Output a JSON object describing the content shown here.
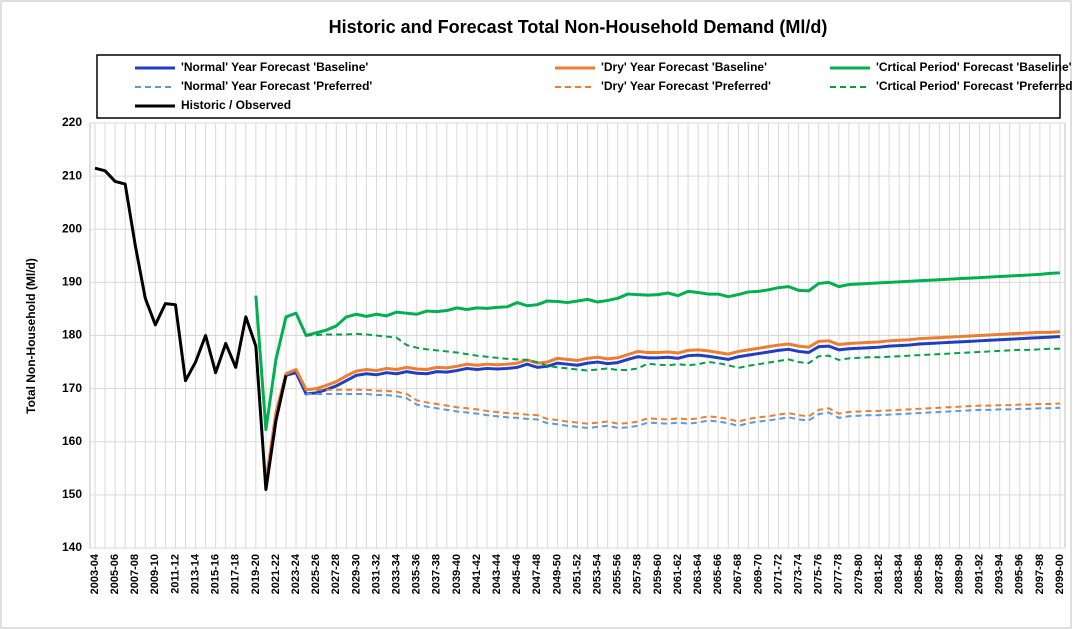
{
  "chart_data": {
    "type": "line",
    "title": "Historic and Forecast Total Non-Household Demand (Ml/d)",
    "y_label": "Total Non-Household (Ml/d)",
    "categories": [
      "2003-04",
      null,
      "2005-06",
      null,
      "2007-08",
      null,
      "2009-10",
      null,
      "2011-12",
      null,
      "2013-14",
      null,
      "2015-16",
      null,
      "2017-18",
      null,
      "2019-20",
      null,
      "2021-22",
      null,
      "2023-24",
      null,
      "2025-26",
      null,
      "2027-28",
      null,
      "2029-30",
      null,
      "2031-32",
      null,
      "2033-34",
      null,
      "2035-36",
      null,
      "2037-38",
      null,
      "2039-40",
      null,
      "2041-42",
      null,
      "2043-44",
      null,
      "2045-46",
      null,
      "2047-48",
      null,
      "2049-50",
      null,
      "2051-52",
      null,
      "2053-54",
      null,
      "2055-56",
      null,
      "2057-58",
      null,
      "2059-60",
      null,
      "2061-62",
      null,
      "2063-64",
      null,
      "2065-66",
      null,
      "2067-68",
      null,
      "2069-70",
      null,
      "2071-72",
      null,
      "2073-74",
      null,
      "2075-76",
      null,
      "2077-78",
      null,
      "2079-80",
      null,
      "2081-82",
      null,
      "2083-84",
      null,
      "2085-86",
      null,
      "2087-88",
      null,
      "2089-90",
      null,
      "2091-92",
      null,
      "2093-94",
      null,
      "2095-96",
      null,
      "2097-98",
      null,
      "2099-00"
    ],
    "ylim": [
      140,
      220
    ],
    "yticks": [
      140,
      150,
      160,
      170,
      180,
      190,
      200,
      210,
      220
    ],
    "grid": true,
    "series": [
      {
        "name": "'Normal' Year Forecast 'Baseline'",
        "color": "#1f3fbf",
        "dashed": false,
        "values": [
          null,
          null,
          null,
          null,
          null,
          null,
          null,
          null,
          null,
          null,
          null,
          null,
          null,
          null,
          null,
          null,
          null,
          152,
          165,
          172.5,
          173,
          169,
          169.2,
          169.8,
          170.5,
          171.5,
          172.5,
          172.8,
          172.6,
          173,
          172.8,
          173.2,
          172.9,
          172.8,
          173.2,
          173.1,
          173.4,
          173.8,
          173.6,
          173.8,
          173.7,
          173.8,
          174,
          174.6,
          174,
          174.2,
          174.8,
          174.6,
          174.4,
          174.8,
          175,
          174.7,
          174.9,
          175.5,
          176,
          175.8,
          175.8,
          175.9,
          175.7,
          176.2,
          176.3,
          176.1,
          175.8,
          175.5,
          176,
          176.3,
          176.6,
          176.9,
          177.2,
          177.4,
          177,
          176.8,
          177.9,
          178,
          177.3,
          177.5,
          177.6,
          177.7,
          177.8,
          178,
          178.1,
          178.2,
          178.4,
          178.5,
          178.6,
          178.7,
          178.8,
          178.9,
          179,
          179.1,
          179.2,
          179.3,
          179.4,
          179.5,
          179.6,
          179.7,
          179.8
        ]
      },
      {
        "name": "'Dry' Year Forecast 'Baseline'",
        "color": "#ed7d31",
        "dashed": false,
        "values": [
          null,
          null,
          null,
          null,
          null,
          null,
          null,
          null,
          null,
          null,
          null,
          null,
          null,
          null,
          null,
          null,
          null,
          152.5,
          165.5,
          172.8,
          173.6,
          169.8,
          170,
          170.6,
          171.3,
          172.4,
          173.3,
          173.6,
          173.4,
          173.8,
          173.6,
          174,
          173.7,
          173.6,
          174,
          173.9,
          174.2,
          174.6,
          174.4,
          174.6,
          174.5,
          174.6,
          174.8,
          175.4,
          174.8,
          175,
          175.7,
          175.5,
          175.3,
          175.7,
          175.9,
          175.6,
          175.8,
          176.4,
          177,
          176.8,
          176.8,
          176.9,
          176.7,
          177.2,
          177.3,
          177.1,
          176.8,
          176.5,
          177,
          177.3,
          177.6,
          177.9,
          178.2,
          178.4,
          178,
          177.8,
          178.9,
          179,
          178.3,
          178.5,
          178.6,
          178.7,
          178.8,
          179,
          179.1,
          179.2,
          179.4,
          179.5,
          179.6,
          179.7,
          179.8,
          179.9,
          180,
          180.1,
          180.2,
          180.3,
          180.4,
          180.5,
          180.6,
          180.6,
          180.7
        ]
      },
      {
        "name": "'Crtical Period' Forecast 'Baseline'",
        "color": "#00b050",
        "dashed": false,
        "values": [
          null,
          null,
          null,
          null,
          null,
          null,
          null,
          null,
          null,
          null,
          null,
          null,
          null,
          null,
          null,
          null,
          187.5,
          162.3,
          175.5,
          183.5,
          184.2,
          180,
          180.5,
          181,
          181.8,
          183.5,
          184,
          183.6,
          184,
          183.7,
          184.4,
          184.2,
          184,
          184.6,
          184.5,
          184.7,
          185.2,
          184.9,
          185.2,
          185.1,
          185.3,
          185.4,
          186.2,
          185.6,
          185.8,
          186.5,
          186.4,
          186.2,
          186.5,
          186.8,
          186.3,
          186.6,
          187,
          187.8,
          187.7,
          187.6,
          187.7,
          188,
          187.5,
          188.3,
          188.1,
          187.8,
          187.8,
          187.3,
          187.7,
          188.2,
          188.3,
          188.6,
          189,
          189.2,
          188.5,
          188.4,
          189.8,
          190,
          189.2,
          189.6,
          189.7,
          189.8,
          189.9,
          190,
          190.1,
          190.2,
          190.3,
          190.4,
          190.5,
          190.6,
          190.7,
          190.8,
          190.9,
          191,
          191.1,
          191.2,
          191.3,
          191.4,
          191.5,
          191.7,
          191.8
        ]
      },
      {
        "name": "'Normal' Year Forecast 'Preferred'",
        "color": "#5b9bd5",
        "dashed": true,
        "values": [
          null,
          null,
          null,
          null,
          null,
          null,
          null,
          null,
          null,
          null,
          null,
          null,
          null,
          null,
          null,
          null,
          null,
          null,
          null,
          null,
          null,
          169,
          169,
          169,
          169,
          169,
          169,
          169,
          168.8,
          168.8,
          168.6,
          168.2,
          167,
          166.6,
          166.3,
          166,
          165.7,
          165.5,
          165.3,
          165,
          164.8,
          164.6,
          164.5,
          164.3,
          164.2,
          163.5,
          163.3,
          163,
          162.8,
          162.6,
          162.8,
          163,
          162.6,
          162.7,
          163,
          163.6,
          163.5,
          163.4,
          163.6,
          163.4,
          163.6,
          164,
          163.8,
          163.5,
          163,
          163.5,
          163.8,
          164,
          164.3,
          164.6,
          164.2,
          164,
          165.2,
          165.5,
          164.5,
          164.8,
          164.9,
          165,
          165,
          165.1,
          165.2,
          165.3,
          165.4,
          165.5,
          165.6,
          165.7,
          165.8,
          165.9,
          166,
          166,
          166.1,
          166.1,
          166.2,
          166.2,
          166.3,
          166.3,
          166.4
        ]
      },
      {
        "name": "'Dry' Year Forecast 'Preferred'",
        "color": "#ed7d31",
        "dashed": true,
        "values": [
          null,
          null,
          null,
          null,
          null,
          null,
          null,
          null,
          null,
          null,
          null,
          null,
          null,
          null,
          null,
          null,
          null,
          null,
          null,
          null,
          null,
          169.8,
          169.8,
          169.8,
          169.8,
          169.8,
          169.8,
          169.8,
          169.6,
          169.6,
          169.4,
          169,
          167.8,
          167.4,
          167.1,
          166.8,
          166.5,
          166.3,
          166.1,
          165.8,
          165.6,
          165.4,
          165.3,
          165.1,
          165,
          164.3,
          164.1,
          163.8,
          163.6,
          163.4,
          163.6,
          163.8,
          163.4,
          163.5,
          163.8,
          164.4,
          164.3,
          164.2,
          164.4,
          164.2,
          164.4,
          164.8,
          164.6,
          164.3,
          163.8,
          164.3,
          164.6,
          164.8,
          165.1,
          165.4,
          165,
          164.8,
          166,
          166.3,
          165.3,
          165.6,
          165.7,
          165.8,
          165.8,
          165.9,
          166,
          166.1,
          166.2,
          166.3,
          166.4,
          166.5,
          166.6,
          166.7,
          166.8,
          166.8,
          166.9,
          166.9,
          167,
          167,
          167.1,
          167.1,
          167.2
        ]
      },
      {
        "name": "'Crtical Period' Forecast 'Preferred'",
        "color": "#00a046",
        "dashed": true,
        "values": [
          null,
          null,
          null,
          null,
          null,
          null,
          null,
          null,
          null,
          null,
          null,
          null,
          null,
          null,
          null,
          null,
          null,
          null,
          null,
          null,
          null,
          180,
          180.1,
          180.2,
          180.2,
          180.2,
          180.3,
          180.2,
          180,
          179.8,
          179.6,
          178.2,
          177.7,
          177.4,
          177.2,
          177,
          176.8,
          176.5,
          176.2,
          176,
          175.8,
          175.6,
          175.5,
          175.4,
          175,
          174.3,
          174,
          173.8,
          173.6,
          173.4,
          173.6,
          173.8,
          173.5,
          173.5,
          173.8,
          174.7,
          174.5,
          174.4,
          174.6,
          174.4,
          174.6,
          175,
          174.8,
          174.4,
          173.9,
          174.3,
          174.6,
          174.9,
          175.2,
          175.5,
          175,
          174.8,
          176.1,
          176.2,
          175.4,
          175.7,
          175.8,
          175.9,
          175.9,
          176,
          176.1,
          176.2,
          176.3,
          176.4,
          176.5,
          176.6,
          176.7,
          176.8,
          176.9,
          177,
          177.1,
          177.2,
          177.3,
          177.3,
          177.4,
          177.5,
          177.5
        ]
      },
      {
        "name": "Historic / Observed",
        "color": "#000000",
        "dashed": false,
        "values": [
          211.5,
          211,
          209,
          208.5,
          197,
          187,
          182,
          186,
          185.8,
          171.5,
          175,
          180,
          173,
          178.5,
          174,
          183.5,
          178,
          151,
          164,
          172.5,
          null,
          null,
          null,
          null,
          null,
          null,
          null,
          null,
          null,
          null,
          null,
          null,
          null,
          null,
          null,
          null,
          null,
          null,
          null,
          null,
          null,
          null,
          null,
          null,
          null,
          null,
          null,
          null,
          null,
          null,
          null,
          null,
          null,
          null,
          null,
          null,
          null,
          null,
          null,
          null,
          null,
          null,
          null,
          null,
          null,
          null,
          null,
          null,
          null,
          null,
          null,
          null,
          null,
          null,
          null,
          null,
          null,
          null,
          null,
          null,
          null,
          null,
          null,
          null,
          null,
          null,
          null,
          null,
          null,
          null,
          null,
          null,
          null,
          null,
          null,
          null,
          null
        ]
      }
    ]
  }
}
